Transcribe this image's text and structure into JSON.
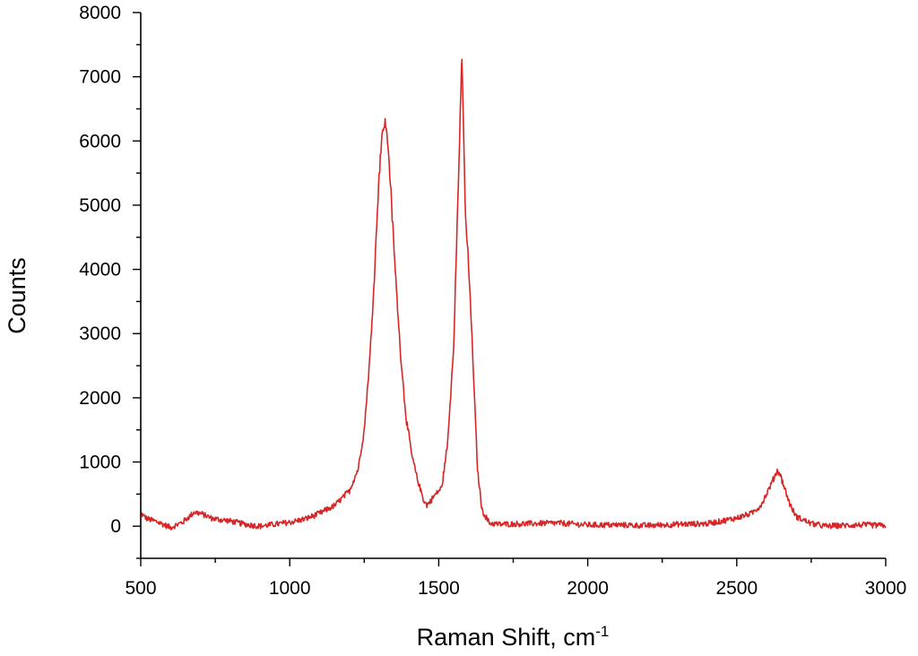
{
  "chart_data": {
    "type": "line",
    "xlabel": "Raman Shift, cm",
    "xlabel_superscript": "-1",
    "ylabel": "Counts",
    "xlim": [
      500,
      3000
    ],
    "ylim": [
      -500,
      8000
    ],
    "x_ticks": [
      500,
      1000,
      1500,
      2000,
      2500,
      3000
    ],
    "y_ticks": [
      0,
      1000,
      2000,
      3000,
      4000,
      5000,
      6000,
      7000,
      8000
    ],
    "x_tick_labels": [
      "500",
      "1000",
      "1500",
      "2000",
      "2500",
      "3000"
    ],
    "y_tick_labels": [
      "0",
      "1000",
      "2000",
      "3000",
      "4000",
      "5000",
      "6000",
      "7000",
      "8000"
    ],
    "grid": false,
    "legend": "none",
    "series": [
      {
        "color": "#d62728",
        "points": [
          [
            500,
            200
          ],
          [
            520,
            120
          ],
          [
            560,
            60
          ],
          [
            600,
            -20
          ],
          [
            640,
            60
          ],
          [
            680,
            220
          ],
          [
            700,
            200
          ],
          [
            740,
            120
          ],
          [
            800,
            80
          ],
          [
            850,
            30
          ],
          [
            900,
            0
          ],
          [
            950,
            30
          ],
          [
            1000,
            60
          ],
          [
            1050,
            110
          ],
          [
            1100,
            200
          ],
          [
            1150,
            320
          ],
          [
            1200,
            550
          ],
          [
            1230,
            900
          ],
          [
            1250,
            1500
          ],
          [
            1270,
            2700
          ],
          [
            1285,
            4000
          ],
          [
            1300,
            5500
          ],
          [
            1310,
            6100
          ],
          [
            1318,
            6300
          ],
          [
            1325,
            6150
          ],
          [
            1335,
            5600
          ],
          [
            1350,
            4300
          ],
          [
            1370,
            2800
          ],
          [
            1390,
            1700
          ],
          [
            1410,
            1100
          ],
          [
            1430,
            700
          ],
          [
            1450,
            400
          ],
          [
            1460,
            330
          ],
          [
            1470,
            380
          ],
          [
            1490,
            500
          ],
          [
            1510,
            600
          ],
          [
            1530,
            1300
          ],
          [
            1550,
            2800
          ],
          [
            1565,
            5200
          ],
          [
            1573,
            6600
          ],
          [
            1578,
            7250
          ],
          [
            1583,
            6200
          ],
          [
            1590,
            4800
          ],
          [
            1600,
            4100
          ],
          [
            1610,
            3100
          ],
          [
            1620,
            2000
          ],
          [
            1630,
            900
          ],
          [
            1645,
            250
          ],
          [
            1670,
            50
          ],
          [
            1700,
            30
          ],
          [
            1800,
            40
          ],
          [
            1900,
            50
          ],
          [
            2000,
            20
          ],
          [
            2100,
            20
          ],
          [
            2200,
            10
          ],
          [
            2300,
            30
          ],
          [
            2400,
            40
          ],
          [
            2450,
            80
          ],
          [
            2500,
            130
          ],
          [
            2550,
            200
          ],
          [
            2580,
            320
          ],
          [
            2600,
            500
          ],
          [
            2620,
            700
          ],
          [
            2635,
            860
          ],
          [
            2645,
            820
          ],
          [
            2660,
            600
          ],
          [
            2680,
            320
          ],
          [
            2700,
            150
          ],
          [
            2750,
            40
          ],
          [
            2800,
            0
          ],
          [
            2900,
            20
          ],
          [
            3000,
            10
          ]
        ]
      }
    ]
  }
}
